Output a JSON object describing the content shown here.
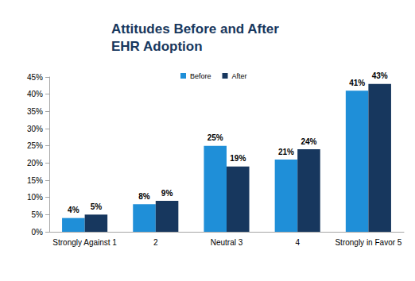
{
  "chart_data": {
    "type": "bar",
    "title": "Attitudes Before and After\nEHR Adoption",
    "categories": [
      "Strongly Against 1",
      "2",
      "Neutral 3",
      "4",
      "Strongly in Favor 5"
    ],
    "series": [
      {
        "name": "Before",
        "color": "#1f8fd8",
        "values": [
          4,
          8,
          25,
          21,
          41
        ],
        "value_labels": [
          "4%",
          "8%",
          "25%",
          "21%",
          "41%"
        ]
      },
      {
        "name": "After",
        "color": "#17375e",
        "values": [
          5,
          9,
          19,
          24,
          43
        ],
        "value_labels": [
          "5%",
          "9%",
          "19%",
          "24%",
          "43%"
        ]
      }
    ],
    "ylim": [
      0,
      45
    ],
    "yticks": [
      {
        "value": 0,
        "label": "0%"
      },
      {
        "value": 5,
        "label": "5%"
      },
      {
        "value": 10,
        "label": "10%"
      },
      {
        "value": 15,
        "label": "15%"
      },
      {
        "value": 20,
        "label": "20%"
      },
      {
        "value": 25,
        "label": "25%"
      },
      {
        "value": 30,
        "label": "30%"
      },
      {
        "value": 35,
        "label": "35%"
      },
      {
        "value": 40,
        "label": "40%"
      },
      {
        "value": 45,
        "label": "45%"
      }
    ],
    "grid": false,
    "legend": "top",
    "data_labels": true
  }
}
